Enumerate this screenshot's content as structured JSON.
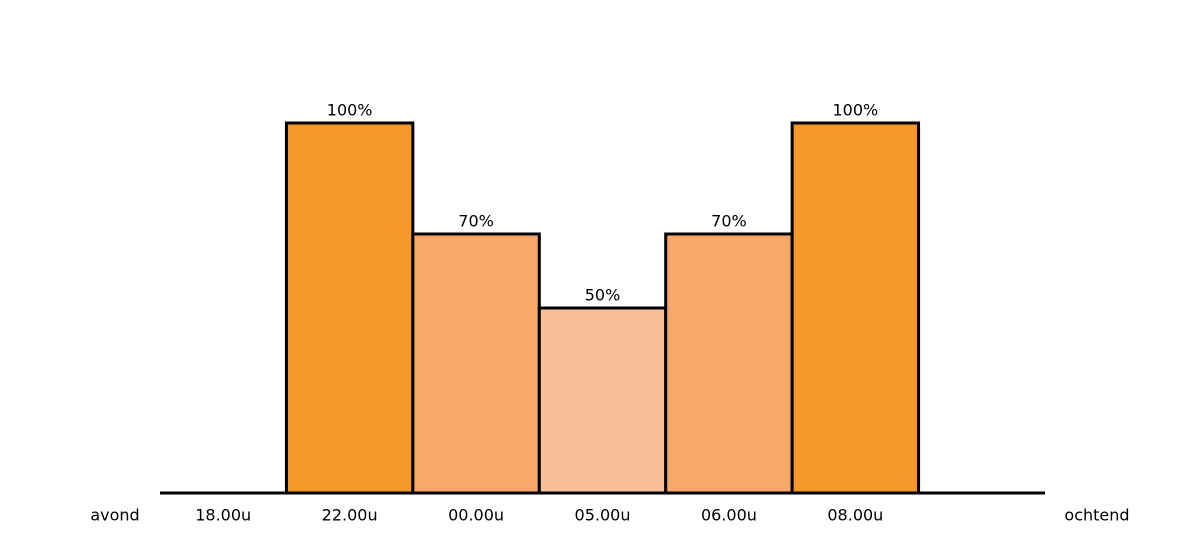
{
  "chart_data": {
    "type": "bar",
    "start_label": "avond",
    "end_label": "ochtend",
    "categories": [
      "18.00u",
      "22.00u",
      "00.00u",
      "05.00u",
      "06.00u",
      "08.00u",
      null
    ],
    "values": [
      null,
      100,
      70,
      50,
      70,
      100,
      null
    ],
    "value_labels": [
      null,
      "100%",
      "70%",
      "50%",
      "70%",
      "100%",
      null
    ],
    "colors": [
      null,
      "#f7982a",
      "#f7a86a",
      "#f9bf98",
      "#f7a86a",
      "#f7982a",
      null
    ],
    "ylim": [
      0,
      100
    ]
  }
}
